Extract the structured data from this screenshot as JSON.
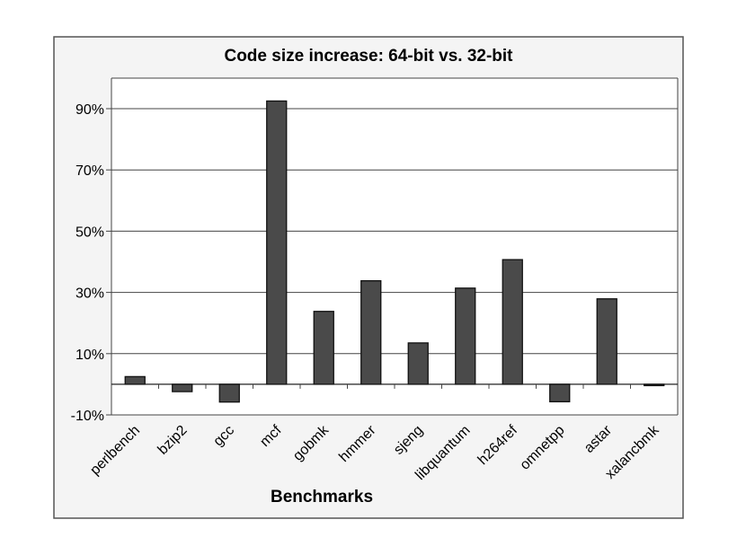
{
  "chart_data": {
    "type": "bar",
    "title": "Code size increase: 64-bit vs. 32-bit",
    "xlabel": "Benchmarks",
    "ylabel": "",
    "categories": [
      "perlbench",
      "bzip2",
      "gcc",
      "mcf",
      "gobmk",
      "hmmer",
      "sjeng",
      "libquantum",
      "h264ref",
      "omnetpp",
      "astar",
      "xalancbmk"
    ],
    "values": [
      2.5,
      -2.4,
      -5.8,
      92.5,
      23.8,
      33.8,
      13.5,
      31.4,
      40.7,
      -5.7,
      27.9,
      -0.3
    ],
    "unit": "%",
    "ylim": [
      -10,
      100
    ],
    "yticks": [
      -10,
      10,
      30,
      50,
      70,
      90
    ],
    "ytick_labels": [
      "-10%",
      "10%",
      "30%",
      "50%",
      "70%",
      "90%"
    ],
    "grid": true,
    "legend": "none",
    "colors": {
      "bar": "#4a4a4a",
      "background": "#f4f4f4",
      "plot": "#ffffff"
    }
  }
}
